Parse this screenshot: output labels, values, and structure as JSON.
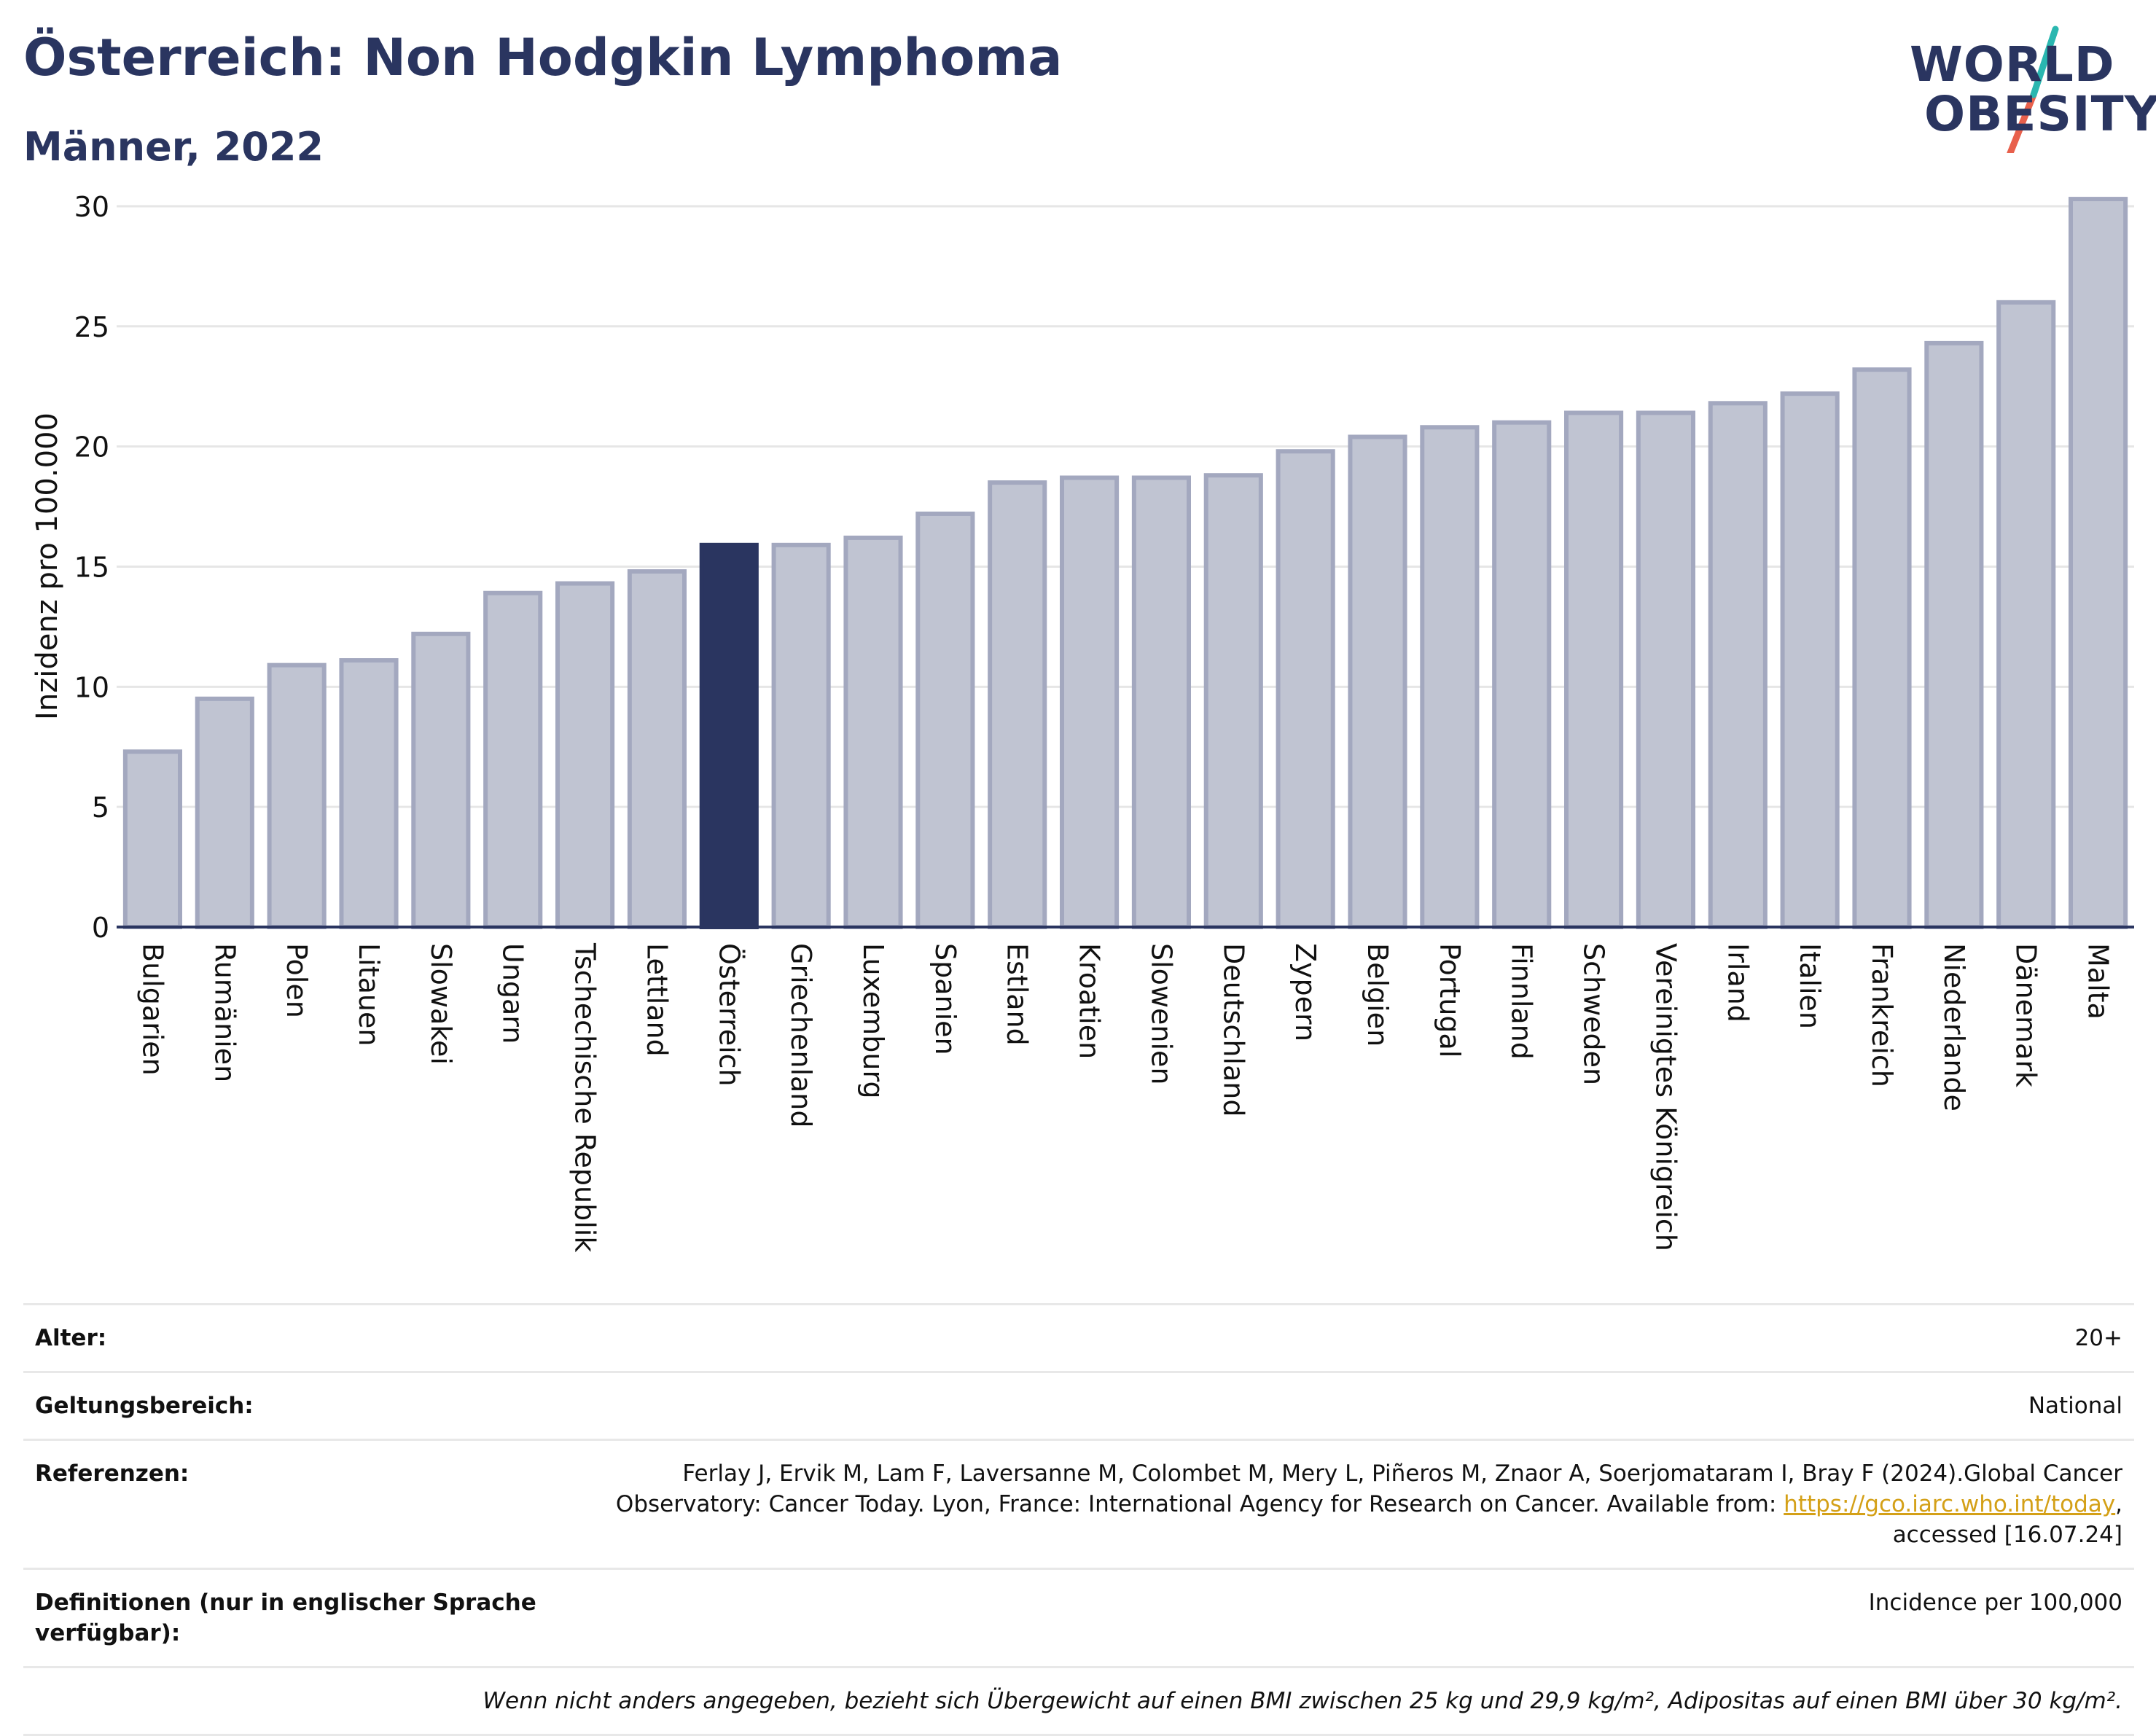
{
  "header": {
    "title": "Österreich: Non Hodgkin Lymphoma",
    "subtitle": "Männer, 2022"
  },
  "logo": {
    "line1": "WORLD",
    "line2": "OBESITY",
    "colors": {
      "text": "#2a3560",
      "accent_top": "#2ab7b0",
      "accent_bottom": "#e8604c"
    }
  },
  "colors": {
    "bar_default": "#c0c4d2",
    "bar_border": "#a3a8bf",
    "bar_highlight": "#2a3560",
    "grid": "#e6e6e6",
    "axis": "#2a3560",
    "link": "#d4a017"
  },
  "chart_data": {
    "type": "bar",
    "title": "Österreich: Non Hodgkin Lymphoma",
    "subtitle": "Männer, 2022",
    "xlabel": "",
    "ylabel": "Inzidenz pro 100.000",
    "ylim": [
      0,
      31
    ],
    "yticks": [
      0,
      5,
      10,
      15,
      20,
      25,
      30
    ],
    "grid": true,
    "highlight": "Österreich",
    "categories": [
      "Bulgarien",
      "Rumänien",
      "Polen",
      "Litauen",
      "Slowakei",
      "Ungarn",
      "Tschechische Republik",
      "Lettland",
      "Österreich",
      "Griechenland",
      "Luxemburg",
      "Spanien",
      "Estland",
      "Kroatien",
      "Slowenien",
      "Deutschland",
      "Zypern",
      "Belgien",
      "Portugal",
      "Finnland",
      "Schweden",
      "Vereinigtes Königreich",
      "Irland",
      "Italien",
      "Frankreich",
      "Niederlande",
      "Dänemark",
      "Malta"
    ],
    "values": [
      7.3,
      9.5,
      10.9,
      11.1,
      12.2,
      13.9,
      14.3,
      14.8,
      15.9,
      15.9,
      16.2,
      17.2,
      18.5,
      18.7,
      18.7,
      18.8,
      19.8,
      20.4,
      20.8,
      21.0,
      21.4,
      21.4,
      21.8,
      22.2,
      23.2,
      24.3,
      26.0,
      30.3
    ]
  },
  "info": [
    {
      "key": "Alter:",
      "value": "20+"
    },
    {
      "key": "Geltungsbereich:",
      "value": "National"
    },
    {
      "key": "Referenzen:",
      "value_prefix": "Ferlay J, Ervik M, Lam F, Laversanne M, Colombet M, Mery L, Piñeros M, Znaor A, Soerjomataram I, Bray F (2024).Global Cancer Observatory: Cancer Today. Lyon, France: International Agency for Research on Cancer. Available from: ",
      "link": "https://gco.iarc.who.int/today",
      "value_suffix": ", accessed [16.07.24]"
    },
    {
      "key": "Definitionen (nur in englischer Sprache verfügbar):",
      "value": "Incidence per 100,000"
    }
  ],
  "footnote": "Wenn nicht anders angegeben, bezieht sich Übergewicht auf einen BMI zwischen 25 kg und 29,9 kg/m², Adipositas auf einen BMI über 30 kg/m²."
}
